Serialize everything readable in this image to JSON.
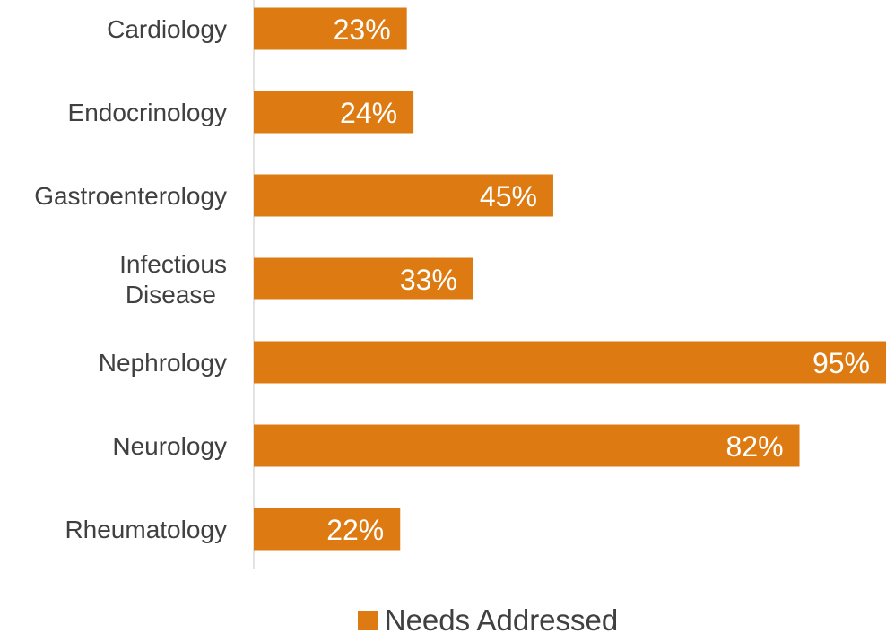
{
  "chart_data": {
    "type": "bar",
    "orientation": "horizontal",
    "categories": [
      "Cardiology",
      "Endocrinology",
      "Gastroenterology",
      "Infectious Disease",
      "Nephrology",
      "Neurology",
      "Rheumatology"
    ],
    "series": [
      {
        "name": "Needs Addressed",
        "values": [
          23,
          24,
          45,
          33,
          95,
          82,
          22
        ],
        "labels": [
          "23%",
          "24%",
          "45%",
          "33%",
          "95%",
          "82%",
          "22%"
        ],
        "color": "#dd7b12"
      }
    ],
    "xlim": [
      0,
      95
    ],
    "unit": "%",
    "grid": false,
    "legend": "bottom",
    "axis_color": "#d9d9d9"
  }
}
